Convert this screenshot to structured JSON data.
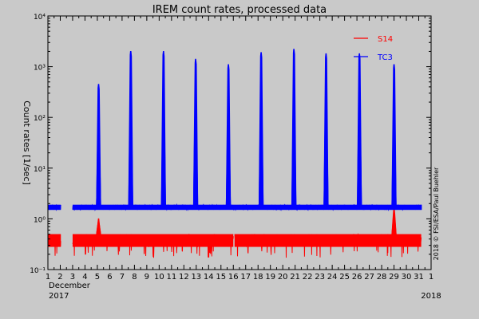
{
  "chart_data": {
    "type": "scatter",
    "title": "IREM count rates, processed data",
    "xlabel": "December",
    "ylabel": "Count rates [1/sec]",
    "year_left": "2017",
    "year_right": "2018",
    "credit": "2018 © FSI/ESA/Paul Buehler",
    "log_scale_y": true,
    "ylim": [
      0.1,
      10000
    ],
    "y_ticks": [
      {
        "value": 0.1,
        "label": "10⁻¹"
      },
      {
        "value": 1,
        "label": "10⁰"
      },
      {
        "value": 10,
        "label": "10¹"
      },
      {
        "value": 100,
        "label": "10²"
      },
      {
        "value": 1000,
        "label": "10³"
      },
      {
        "value": 10000,
        "label": "10⁴"
      }
    ],
    "xlim": [
      1,
      32
    ],
    "x_ticks": [
      {
        "value": 1,
        "label": "1"
      },
      {
        "value": 2,
        "label": "2"
      },
      {
        "value": 3,
        "label": "3"
      },
      {
        "value": 4,
        "label": "4"
      },
      {
        "value": 5,
        "label": "5"
      },
      {
        "value": 6,
        "label": "6"
      },
      {
        "value": 7,
        "label": "7"
      },
      {
        "value": 8,
        "label": "8"
      },
      {
        "value": 9,
        "label": "9"
      },
      {
        "value": 10,
        "label": "10"
      },
      {
        "value": 11,
        "label": "11"
      },
      {
        "value": 12,
        "label": "12"
      },
      {
        "value": 13,
        "label": "13"
      },
      {
        "value": 14,
        "label": "14"
      },
      {
        "value": 15,
        "label": "15"
      },
      {
        "value": 16,
        "label": "16"
      },
      {
        "value": 17,
        "label": "17"
      },
      {
        "value": 18,
        "label": "18"
      },
      {
        "value": 19,
        "label": "19"
      },
      {
        "value": 20,
        "label": "20"
      },
      {
        "value": 21,
        "label": "21"
      },
      {
        "value": 22,
        "label": "22"
      },
      {
        "value": 23,
        "label": "23"
      },
      {
        "value": 24,
        "label": "24"
      },
      {
        "value": 25,
        "label": "25"
      },
      {
        "value": 26,
        "label": "26"
      },
      {
        "value": 27,
        "label": "27"
      },
      {
        "value": 28,
        "label": "28"
      },
      {
        "value": 29,
        "label": "29"
      },
      {
        "value": 30,
        "label": "30"
      },
      {
        "value": 31,
        "label": "31"
      },
      {
        "value": 32,
        "label": "1"
      }
    ],
    "legend_position": "top-right",
    "series": [
      {
        "name": "S14",
        "color": "#ff0000",
        "baseline_band": [
          0.28,
          0.5
        ],
        "dips_to": 0.17,
        "gaps": [
          [
            2.05,
            3.0
          ],
          [
            16.0,
            16.1
          ]
        ],
        "spikes": [
          {
            "day": 5.1,
            "peak": 1.0
          },
          {
            "day": 29.0,
            "peak": 1.6
          }
        ]
      },
      {
        "name": "TC3",
        "color": "#0000ff",
        "baseline_band": [
          1.5,
          1.9
        ],
        "gaps": [
          [
            2.05,
            3.0
          ],
          [
            31.25,
            32.0
          ]
        ],
        "spikes": [
          {
            "day": 5.1,
            "peak": 450
          },
          {
            "day": 7.7,
            "peak": 2000
          },
          {
            "day": 10.35,
            "peak": 2000
          },
          {
            "day": 12.95,
            "peak": 1400
          },
          {
            "day": 15.6,
            "peak": 1100
          },
          {
            "day": 18.25,
            "peak": 1900
          },
          {
            "day": 20.9,
            "peak": 2200
          },
          {
            "day": 23.5,
            "peak": 1800
          },
          {
            "day": 26.2,
            "peak": 1800
          },
          {
            "day": 29.0,
            "peak": 1100
          }
        ]
      }
    ]
  }
}
